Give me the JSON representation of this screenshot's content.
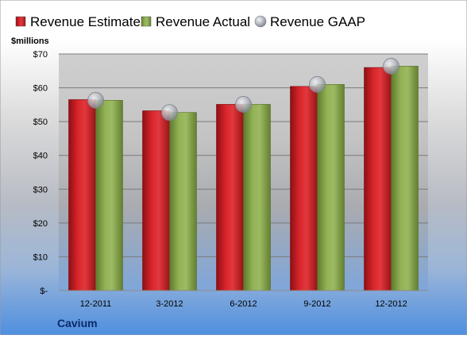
{
  "chart_data": {
    "type": "bar",
    "company": "Cavium",
    "unit_label": "$millions",
    "categories": [
      "12-2011",
      "3-2012",
      "6-2012",
      "9-2012",
      "12-2012"
    ],
    "series": [
      {
        "name": "Revenue Estimate",
        "kind": "bar",
        "color": "#cc1e24",
        "values": [
          56.5,
          53.2,
          55.1,
          60.4,
          66.0
        ]
      },
      {
        "name": "Revenue Actual",
        "kind": "bar",
        "color": "#8aaa4c",
        "values": [
          56.3,
          52.7,
          55.1,
          61.0,
          66.4
        ]
      },
      {
        "name": "Revenue GAAP",
        "kind": "marker",
        "color": "#b4b8c0",
        "values": [
          56.3,
          52.7,
          55.1,
          61.0,
          66.4
        ]
      }
    ],
    "y_ticks": [
      "$-",
      "$10",
      "$20",
      "$30",
      "$40",
      "$50",
      "$60",
      "$70"
    ],
    "ylim": [
      0,
      70
    ],
    "grid": true,
    "legend_position": "top"
  }
}
